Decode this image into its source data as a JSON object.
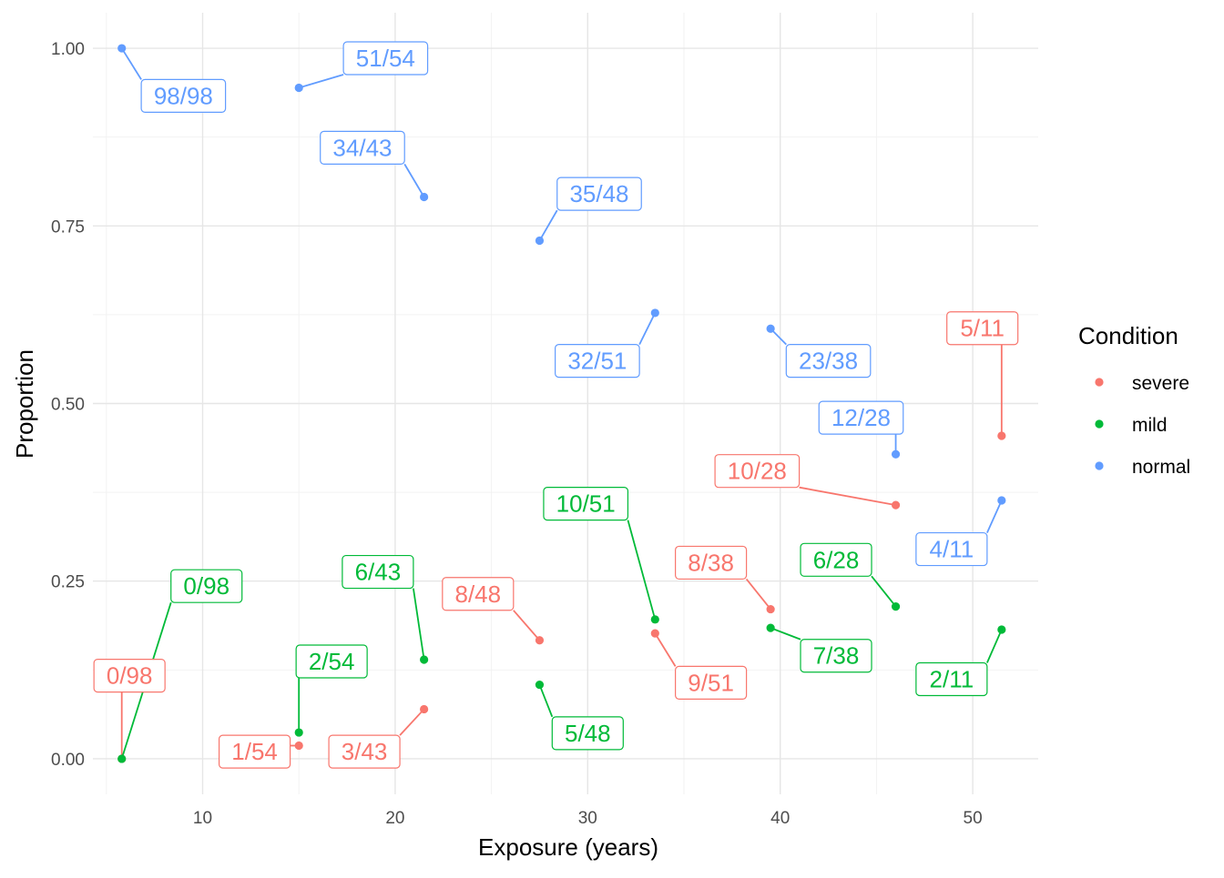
{
  "chart_data": {
    "type": "scatter",
    "title": "",
    "xlabel": "Exposure (years)",
    "ylabel": "Proportion",
    "xlim": [
      4.3,
      53.4
    ],
    "ylim": [
      -0.05,
      1.05
    ],
    "x_ticks": [
      10,
      20,
      30,
      40,
      50
    ],
    "x_tick_labels": [
      "10",
      "20",
      "30",
      "40",
      "50"
    ],
    "y_ticks": [
      0,
      0.25,
      0.5,
      0.75,
      1.0
    ],
    "y_tick_labels": [
      "0.00",
      "0.25",
      "0.50",
      "0.75",
      "1.00"
    ],
    "grid": true,
    "legend": {
      "title": "Condition",
      "placement": "right",
      "entries": [
        {
          "label": "severe",
          "color": "#F8766D"
        },
        {
          "label": "mild",
          "color": "#00BA38"
        },
        {
          "label": "normal",
          "color": "#619CFF"
        }
      ]
    },
    "series": [
      {
        "name": "severe",
        "color": "#F8766D",
        "points": [
          {
            "x": 5.8,
            "y": 0.0,
            "label": "0/98",
            "lx": 6.2,
            "ly": 0.117
          },
          {
            "x": 15.0,
            "y": 0.0185,
            "label": "1/54",
            "lx": 12.7,
            "ly": 0.01
          },
          {
            "x": 21.5,
            "y": 0.0698,
            "label": "3/43",
            "lx": 18.4,
            "ly": 0.01
          },
          {
            "x": 27.5,
            "y": 0.1667,
            "label": "8/48",
            "lx": 24.3,
            "ly": 0.232
          },
          {
            "x": 33.5,
            "y": 0.1765,
            "label": "9/51",
            "lx": 36.4,
            "ly": 0.107
          },
          {
            "x": 39.5,
            "y": 0.2105,
            "label": "8/38",
            "lx": 36.4,
            "ly": 0.276
          },
          {
            "x": 46.0,
            "y": 0.3571,
            "label": "10/28",
            "lx": 38.8,
            "ly": 0.405
          },
          {
            "x": 51.5,
            "y": 0.4545,
            "label": "5/11",
            "lx": 50.5,
            "ly": 0.606
          }
        ]
      },
      {
        "name": "mild",
        "color": "#00BA38",
        "points": [
          {
            "x": 5.8,
            "y": 0.0,
            "label": "0/98",
            "lx": 10.2,
            "ly": 0.243
          },
          {
            "x": 15.0,
            "y": 0.037,
            "label": "2/54",
            "lx": 16.7,
            "ly": 0.137
          },
          {
            "x": 21.5,
            "y": 0.1395,
            "label": "6/43",
            "lx": 19.1,
            "ly": 0.263
          },
          {
            "x": 27.5,
            "y": 0.1042,
            "label": "5/48",
            "lx": 30.0,
            "ly": 0.036
          },
          {
            "x": 33.5,
            "y": 0.1961,
            "label": "10/51",
            "lx": 29.9,
            "ly": 0.359
          },
          {
            "x": 39.5,
            "y": 0.1842,
            "label": "7/38",
            "lx": 42.9,
            "ly": 0.145
          },
          {
            "x": 46.0,
            "y": 0.2143,
            "label": "6/28",
            "lx": 42.9,
            "ly": 0.28
          },
          {
            "x": 51.5,
            "y": 0.1818,
            "label": "2/11",
            "lx": 48.9,
            "ly": 0.112
          }
        ]
      },
      {
        "name": "normal",
        "color": "#619CFF",
        "points": [
          {
            "x": 5.8,
            "y": 1.0,
            "label": "98/98",
            "lx": 9.0,
            "ly": 0.933
          },
          {
            "x": 15.0,
            "y": 0.9444,
            "label": "51/54",
            "lx": 19.5,
            "ly": 0.986
          },
          {
            "x": 21.5,
            "y": 0.7907,
            "label": "34/43",
            "lx": 18.3,
            "ly": 0.86
          },
          {
            "x": 27.5,
            "y": 0.7292,
            "label": "35/48",
            "lx": 30.6,
            "ly": 0.795
          },
          {
            "x": 33.5,
            "y": 0.6275,
            "label": "32/51",
            "lx": 30.5,
            "ly": 0.56
          },
          {
            "x": 39.5,
            "y": 0.6053,
            "label": "23/38",
            "lx": 42.5,
            "ly": 0.56
          },
          {
            "x": 46.0,
            "y": 0.4286,
            "label": "12/28",
            "lx": 44.2,
            "ly": 0.48
          },
          {
            "x": 51.5,
            "y": 0.3636,
            "label": "4/11",
            "lx": 48.9,
            "ly": 0.295
          }
        ]
      }
    ]
  }
}
